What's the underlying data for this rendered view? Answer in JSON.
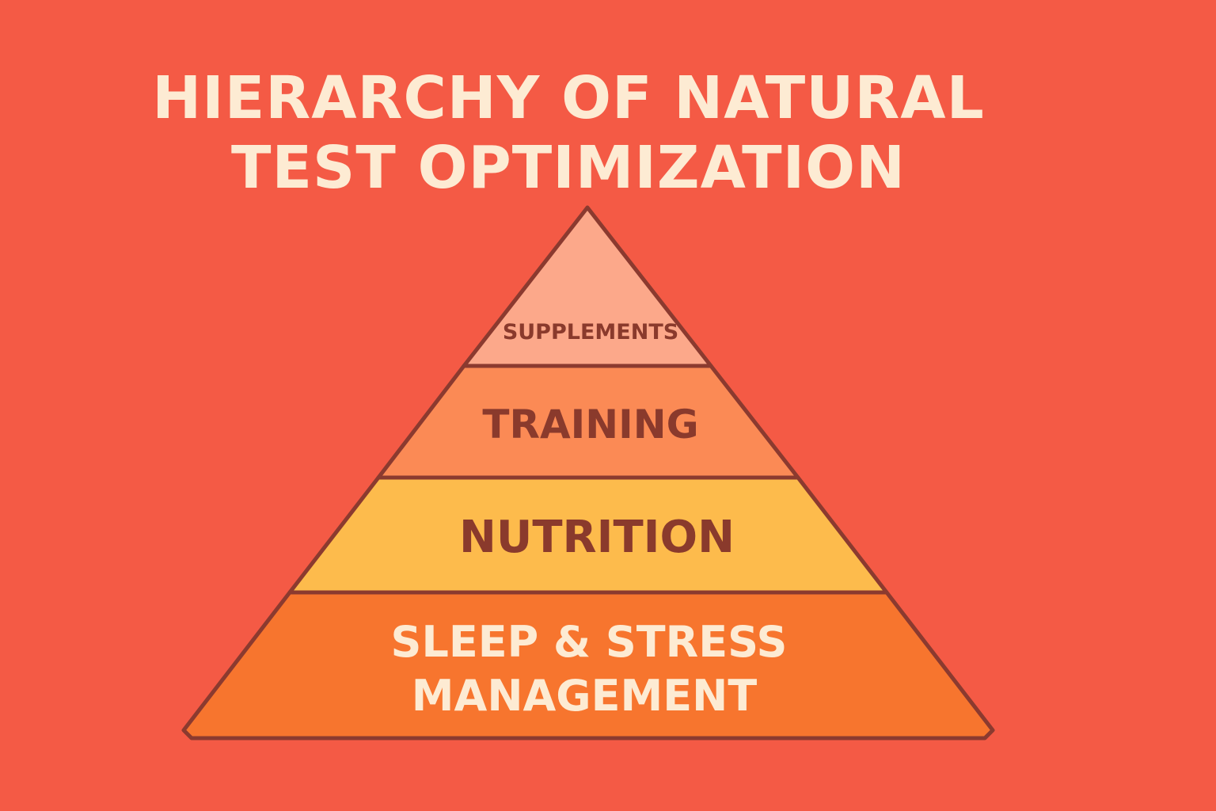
{
  "title": {
    "line1": "HIERARCHY OF NATURAL",
    "line2": "TEST OPTIMIZATION"
  },
  "pyramid": {
    "levels": [
      {
        "label": "SUPPLEMENTS",
        "color": "#FCA88A"
      },
      {
        "label": "TRAINING",
        "color": "#FB8A55"
      },
      {
        "label": "NUTRITION",
        "color": "#FDBB4C"
      },
      {
        "label_line1": "SLEEP & STRESS",
        "label_line2": "MANAGEMENT",
        "color": "#F7752E"
      }
    ],
    "outline_color": "#8B3A2F"
  },
  "colors": {
    "background": "#F45A45",
    "title_text": "#FDEBD3",
    "dark_text": "#8A3A2C"
  }
}
